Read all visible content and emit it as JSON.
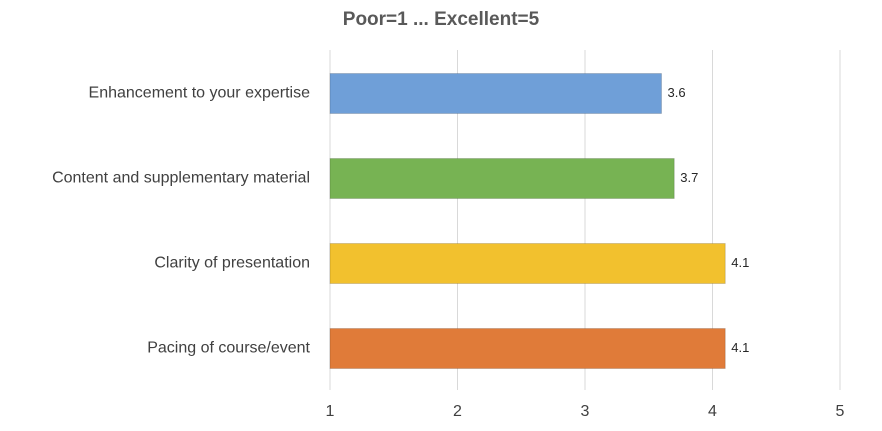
{
  "chart_data": {
    "type": "bar",
    "orientation": "horizontal",
    "title": "Poor=1 ... Excellent=5",
    "categories": [
      "Enhancement to your expertise",
      "Content and supplementary material",
      "Clarity of presentation",
      "Pacing of course/event"
    ],
    "values": [
      3.6,
      3.7,
      4.1,
      4.1
    ],
    "colors": [
      "#6f9fd8",
      "#77b353",
      "#f2c12e",
      "#e07b39"
    ],
    "xlim": [
      1,
      5
    ],
    "xticks": [
      1,
      2,
      3,
      4,
      5
    ],
    "grid": true
  }
}
